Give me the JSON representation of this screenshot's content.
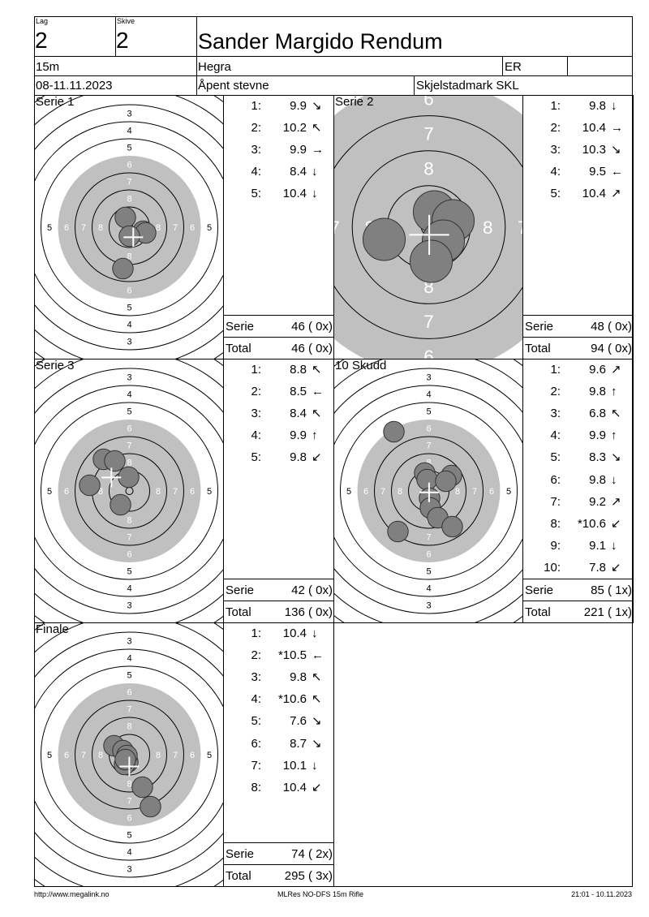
{
  "header": {
    "lag_label": "Lag",
    "lag": "2",
    "skive_label": "Skive",
    "skive": "2",
    "name": "Sander Margido Rendum",
    "distance": "15m",
    "club": "Hegra",
    "class": "ER",
    "class_extra": "",
    "date": "08-11.11.2023",
    "event": "Åpent stevne",
    "organizer": "Skjelstadmark SKL"
  },
  "colors": {
    "target_black_zone": "#c0c0c0",
    "shot": "#808080",
    "line": "#000000"
  },
  "panels": [
    {
      "title": "Serie 1",
      "shots": [
        {
          "n": "1:",
          "v": "9.9",
          "dir": "↘"
        },
        {
          "n": "2:",
          "v": "10.2",
          "dir": "↖"
        },
        {
          "n": "3:",
          "v": "9.9",
          "dir": "→"
        },
        {
          "n": "4:",
          "v": "8.4",
          "dir": "↓"
        },
        {
          "n": "5:",
          "v": "10.4",
          "dir": "↓"
        }
      ],
      "serie_label": "Serie",
      "serie": "46 ( 0x)",
      "total_label": "Total",
      "total": "46 ( 0x)"
    },
    {
      "title": "Serie 2",
      "shots": [
        {
          "n": "1:",
          "v": "9.8",
          "dir": "↓"
        },
        {
          "n": "2:",
          "v": "10.4",
          "dir": "→"
        },
        {
          "n": "3:",
          "v": "10.3",
          "dir": "↘"
        },
        {
          "n": "4:",
          "v": "9.5",
          "dir": "←"
        },
        {
          "n": "5:",
          "v": "10.4",
          "dir": "↗"
        }
      ],
      "serie_label": "Serie",
      "serie": "48 ( 0x)",
      "total_label": "Total",
      "total": "94 ( 0x)"
    },
    {
      "title": "Serie 3",
      "shots": [
        {
          "n": "1:",
          "v": "8.8",
          "dir": "↖"
        },
        {
          "n": "2:",
          "v": "8.5",
          "dir": "←"
        },
        {
          "n": "3:",
          "v": "8.4",
          "dir": "↖"
        },
        {
          "n": "4:",
          "v": "9.9",
          "dir": "↑"
        },
        {
          "n": "5:",
          "v": "9.8",
          "dir": "↙"
        }
      ],
      "serie_label": "Serie",
      "serie": "42 ( 0x)",
      "total_label": "Total",
      "total": "136 ( 0x)"
    },
    {
      "title": "10 Skudd",
      "shots": [
        {
          "n": "1:",
          "v": "9.6",
          "dir": "↗"
        },
        {
          "n": "2:",
          "v": "9.8",
          "dir": "↑"
        },
        {
          "n": "3:",
          "v": "6.8",
          "dir": "↖"
        },
        {
          "n": "4:",
          "v": "9.9",
          "dir": "↑"
        },
        {
          "n": "5:",
          "v": "8.3",
          "dir": "↘"
        },
        {
          "n": "6:",
          "v": "9.8",
          "dir": "↓"
        },
        {
          "n": "7:",
          "v": "9.2",
          "dir": "↗"
        },
        {
          "n": "8:",
          "v": "*10.6",
          "dir": "↙"
        },
        {
          "n": "9:",
          "v": "9.1",
          "dir": "↓"
        },
        {
          "n": "10:",
          "v": "7.8",
          "dir": "↙"
        }
      ],
      "serie_label": "Serie",
      "serie": "85 ( 1x)",
      "total_label": "Total",
      "total": "221 ( 1x)"
    },
    {
      "title": "Finale",
      "shots": [
        {
          "n": "1:",
          "v": "10.4",
          "dir": "↓"
        },
        {
          "n": "2:",
          "v": "*10.5",
          "dir": "←"
        },
        {
          "n": "3:",
          "v": "9.8",
          "dir": "↖"
        },
        {
          "n": "4:",
          "v": "*10.6",
          "dir": "↖"
        },
        {
          "n": "5:",
          "v": "7.6",
          "dir": "↘"
        },
        {
          "n": "6:",
          "v": "8.7",
          "dir": "↘"
        },
        {
          "n": "7:",
          "v": "10.1",
          "dir": "↓"
        },
        {
          "n": "8:",
          "v": "10.4",
          "dir": "↙"
        }
      ],
      "serie_label": "Serie",
      "serie": "74 ( 2x)",
      "total_label": "Total",
      "total": "295 ( 3x)"
    }
  ],
  "footer": {
    "url": "http://www.megalink.no",
    "program": "MLRes NO-DFS 15m Rifle",
    "printed": "21:01 - 10.11.2023"
  }
}
